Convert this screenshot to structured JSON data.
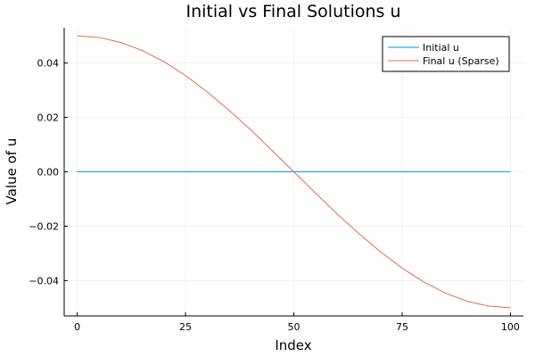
{
  "chart_data": {
    "type": "line",
    "title": "Initial vs Final Solutions u",
    "xlabel": "Index",
    "ylabel": "Value of u",
    "xlim": [
      -3,
      103
    ],
    "ylim": [
      -0.053,
      0.053
    ],
    "x_ticks": [
      0,
      25,
      50,
      75,
      100
    ],
    "x_tick_labels": [
      "0",
      "25",
      "50",
      "75",
      "100"
    ],
    "y_ticks": [
      -0.04,
      -0.02,
      0.0,
      0.02,
      0.04
    ],
    "y_tick_labels": [
      "−0.04",
      "−0.02",
      "0.00",
      "0.02",
      "0.04"
    ],
    "grid": true,
    "legend_position": "top-right",
    "x": [
      0,
      5,
      10,
      15,
      20,
      25,
      30,
      35,
      40,
      45,
      50,
      55,
      60,
      65,
      70,
      75,
      80,
      85,
      90,
      95,
      100
    ],
    "series": [
      {
        "name": "Initial u",
        "color": "#009AFA",
        "values": [
          0,
          0,
          0,
          0,
          0,
          0,
          0,
          0,
          0,
          0,
          0,
          0,
          0,
          0,
          0,
          0,
          0,
          0,
          0,
          0,
          0
        ]
      },
      {
        "name": "Final u (Sparse)",
        "color": "#E26F46",
        "values": [
          0.05,
          0.0494,
          0.0476,
          0.0446,
          0.0405,
          0.0354,
          0.0294,
          0.0227,
          0.0155,
          0.0078,
          0.0,
          -0.0078,
          -0.0155,
          -0.0227,
          -0.0294,
          -0.0354,
          -0.0405,
          -0.0446,
          -0.0476,
          -0.0494,
          -0.05
        ]
      }
    ]
  }
}
